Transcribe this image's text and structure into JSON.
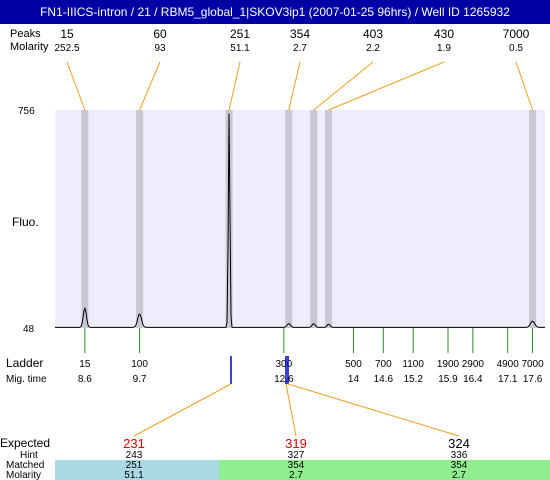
{
  "title": "FN1-IIICS-intron / 21 / RBM5_global_1|SKOV3ip1 (2007-01-25 96hrs) / Well ID 1265932",
  "header_labels": {
    "peaks": "Peaks",
    "molarity": "Molarity"
  },
  "axis": {
    "y_label": "Fluo.",
    "y_max": "756",
    "y_min": "48",
    "ladder_label": "Ladder",
    "migtime_label": "Mig. time"
  },
  "chart_data": {
    "type": "line",
    "title": "FN1-IIICS-intron / 21 / RBM5_global_1|SKOV3ip1 (2007-01-25 96hrs) / Well ID 1265932",
    "ylabel": "Fluo.",
    "ylim": [
      48,
      756
    ],
    "peaks": [
      {
        "size": "15",
        "molarity": "252.5",
        "mig_time": 8.6,
        "height": 116
      },
      {
        "size": "60",
        "molarity": "93",
        "mig_time": 9.7,
        "height": 98
      },
      {
        "size": "251",
        "molarity": "51.1",
        "mig_time": 11.5,
        "height": 756
      },
      {
        "size": "354",
        "molarity": "2.7",
        "mig_time": 12.7,
        "height": 66
      },
      {
        "size": "403",
        "molarity": "2.2",
        "mig_time": 13.2,
        "height": 66
      },
      {
        "size": "430",
        "molarity": "1.9",
        "mig_time": 13.5,
        "height": 64
      },
      {
        "size": "7000",
        "molarity": "0.5",
        "mig_time": 17.6,
        "height": 74
      }
    ],
    "ladder": [
      {
        "size": "15",
        "mig_time": "8.6"
      },
      {
        "size": "100",
        "mig_time": "9.7"
      },
      {
        "size": "300",
        "mig_time": "12.6"
      },
      {
        "size": "500",
        "mig_time": "14"
      },
      {
        "size": "700",
        "mig_time": "14.6"
      },
      {
        "size": "1100",
        "mig_time": "15.2"
      },
      {
        "size": "1900",
        "mig_time": "15.9"
      },
      {
        "size": "2900",
        "mig_time": "16.4"
      },
      {
        "size": "4900",
        "mig_time": "17.1"
      },
      {
        "size": "7000",
        "mig_time": "17.6"
      }
    ],
    "expected": [
      {
        "expected": "231",
        "hint": "243",
        "matched": "251",
        "molarity": "51.1"
      },
      {
        "expected": "319",
        "hint": "327",
        "matched": "354",
        "molarity": "2.7"
      },
      {
        "expected": "324",
        "hint": "336",
        "matched": "354",
        "molarity": "2.7"
      }
    ],
    "row_labels": {
      "expected": "Expected",
      "hint": "Hint",
      "matched": "Matched",
      "molarity": "Molarity"
    },
    "colors": {
      "title_bg": "#0000a4",
      "plot_bg": "#ededfc",
      "peak_band": "#c8c8d4",
      "connector": "#f0a020",
      "ladder_tick": "#2e8b2e",
      "marker": "#0000c0",
      "expected_text": "#e00000",
      "matched_fill_1": "#add8e6",
      "matched_fill_2": "#90ee90"
    }
  }
}
